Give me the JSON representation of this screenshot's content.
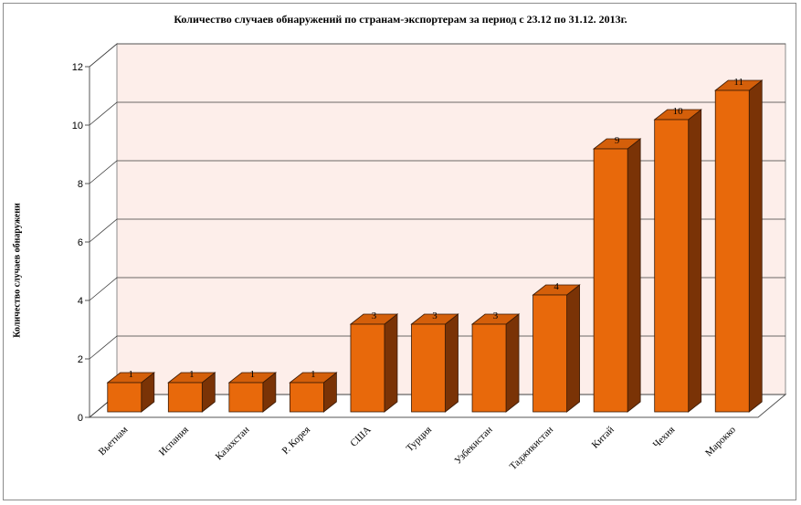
{
  "chart_data": {
    "type": "bar",
    "title": "Количество случаев обнаружений по странам-экспортерам за период с 23.12 по 31.12. 2013г.",
    "xlabel": "",
    "ylabel": "Количество случаев обнаружени",
    "ylim": [
      0,
      12
    ],
    "yticks": [
      0,
      2,
      4,
      6,
      8,
      10,
      12
    ],
    "categories": [
      "Вьетнам",
      "Испания",
      "Казахстан",
      "Р. Корея",
      "США",
      "Турция",
      "Узбекистан",
      "Таджикистан",
      "Китай",
      "Чехия",
      "Марокко"
    ],
    "values": [
      1,
      1,
      1,
      1,
      3,
      3,
      3,
      4,
      9,
      10,
      11
    ],
    "data_labels": true,
    "grid": true,
    "legend": "none",
    "colors": {
      "bar_front": "#e8690b",
      "bar_top": "#d45f0a",
      "bar_side": "#7a3306",
      "bar_edge": "#3a1a05",
      "wall": "#fdeeea",
      "grid": "#3c3c3c"
    }
  }
}
